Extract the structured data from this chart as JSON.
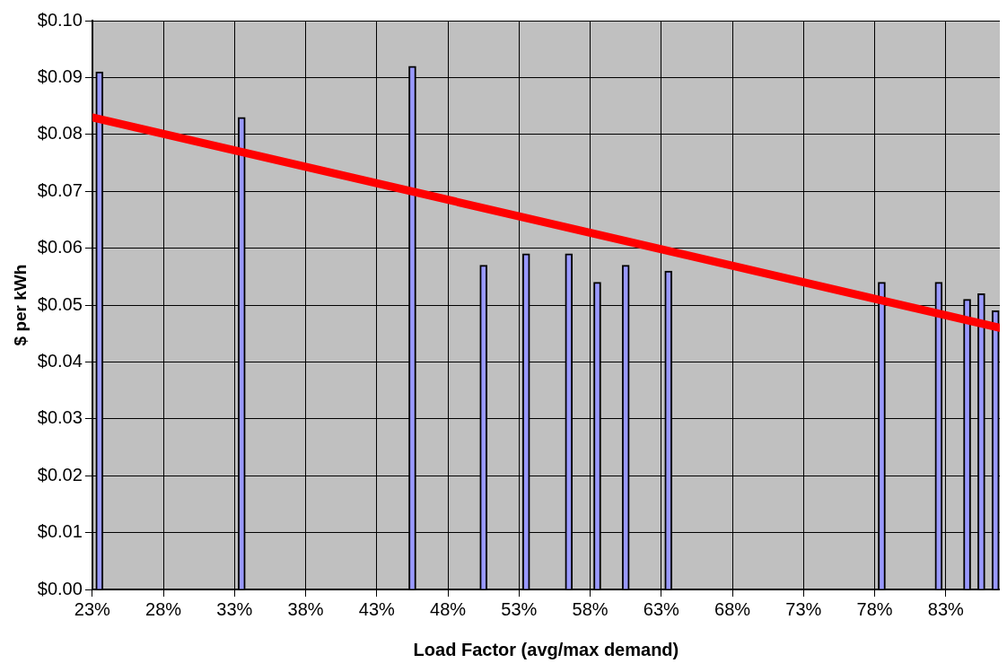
{
  "chart_data": {
    "type": "bar",
    "xlabel": "Load Factor (avg/max demand)",
    "ylabel": "$ per kWh",
    "xlim": [
      23,
      86.8
    ],
    "xticks": [
      {
        "value": 23,
        "label": "23%"
      },
      {
        "value": 28,
        "label": "28%"
      },
      {
        "value": 33,
        "label": "33%"
      },
      {
        "value": 38,
        "label": "38%"
      },
      {
        "value": 43,
        "label": "43%"
      },
      {
        "value": 48,
        "label": "48%"
      },
      {
        "value": 53,
        "label": "53%"
      },
      {
        "value": 58,
        "label": "58%"
      },
      {
        "value": 63,
        "label": "63%"
      },
      {
        "value": 68,
        "label": "68%"
      },
      {
        "value": 73,
        "label": "73%"
      },
      {
        "value": 78,
        "label": "78%"
      },
      {
        "value": 83,
        "label": "83%"
      }
    ],
    "ylim": [
      0,
      0.1
    ],
    "yticks": [
      {
        "value": 0,
        "label": "$0.00"
      },
      {
        "value": 0.01,
        "label": "$0.01"
      },
      {
        "value": 0.02,
        "label": "$0.02"
      },
      {
        "value": 0.03,
        "label": "$0.03"
      },
      {
        "value": 0.04,
        "label": "$0.04"
      },
      {
        "value": 0.05,
        "label": "$0.05"
      },
      {
        "value": 0.06,
        "label": "$0.06"
      },
      {
        "value": 0.07,
        "label": "$0.07"
      },
      {
        "value": 0.08,
        "label": "$0.08"
      },
      {
        "value": 0.09,
        "label": "$0.09"
      },
      {
        "value": 0.1,
        "label": "$0.10"
      }
    ],
    "grid": true,
    "legend": false,
    "series": [
      {
        "color": "#9999ff",
        "x": [
          23.5,
          33.5,
          45.5,
          50.5,
          53.5,
          56.5,
          58.5,
          60.5,
          63.5,
          78.5,
          82.5,
          84.5,
          85.5,
          86.5
        ],
        "values": [
          0.091,
          0.083,
          0.092,
          0.057,
          0.059,
          0.059,
          0.054,
          0.057,
          0.056,
          0.054,
          0.054,
          0.051,
          0.052,
          0.049
        ]
      },
      {
        "type": "line",
        "color": "#ff0000",
        "x": [
          23,
          86.8
        ],
        "values": [
          0.083,
          0.046
        ]
      }
    ]
  }
}
